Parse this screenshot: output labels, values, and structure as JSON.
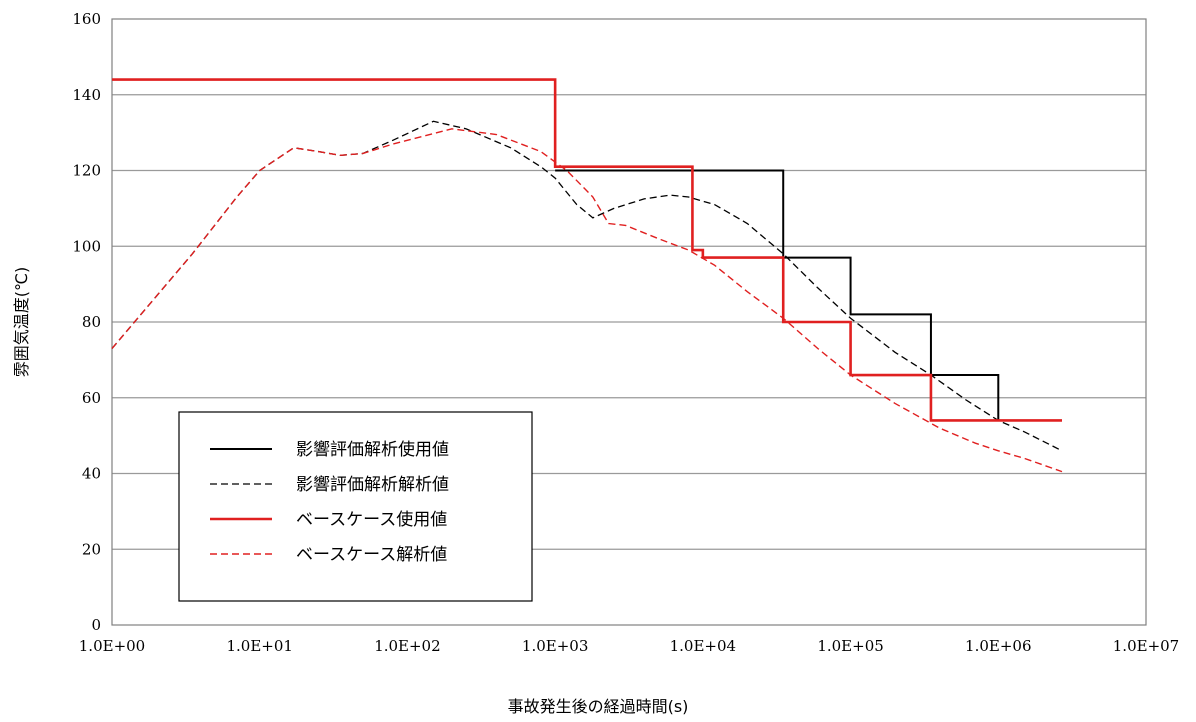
{
  "chart_data": {
    "type": "line",
    "xscale": "log",
    "xlim": [
      1,
      10000000
    ],
    "ylim": [
      0,
      160
    ],
    "grid": "horizontal",
    "legend_position": "bottom-left",
    "xlabel": "事故発生後の経過時間(s)",
    "ylabel": "雰囲気温度(℃)",
    "x_tick_values": [
      1,
      10,
      100,
      1000,
      10000,
      100000,
      1000000,
      10000000
    ],
    "x_tick_labels": [
      "1.0E+00",
      "1.0E+01",
      "1.0E+02",
      "1.0E+03",
      "1.0E+04",
      "1.0E+05",
      "1.0E+06",
      "1.0E+07"
    ],
    "y_tick_values": [
      0,
      20,
      40,
      60,
      80,
      100,
      120,
      140,
      160
    ],
    "y_tick_labels": [
      "0",
      "20",
      "40",
      "60",
      "80",
      "100",
      "120",
      "140",
      "160"
    ],
    "series": [
      {
        "name": "影響評価解析使用値",
        "color": "#000000",
        "style": "solid",
        "points": [
          [
            1000,
            120
          ],
          [
            35000,
            120
          ],
          [
            35000,
            97
          ],
          [
            100000,
            97
          ],
          [
            100000,
            82
          ],
          [
            350000,
            82
          ],
          [
            350000,
            66
          ],
          [
            1000000,
            66
          ],
          [
            1000000,
            54
          ]
        ]
      },
      {
        "name": "影響評価解析解析値",
        "color": "#000000",
        "style": "dashed",
        "points": [
          [
            1,
            73
          ],
          [
            3.5,
            98
          ],
          [
            7,
            113
          ],
          [
            10,
            120
          ],
          [
            17,
            126
          ],
          [
            25,
            125
          ],
          [
            35,
            124
          ],
          [
            50,
            124.5
          ],
          [
            80,
            128
          ],
          [
            150,
            133
          ],
          [
            250,
            131
          ],
          [
            500,
            126
          ],
          [
            800,
            121
          ],
          [
            1000,
            118
          ],
          [
            1400,
            111
          ],
          [
            1800,
            107.5
          ],
          [
            2500,
            110
          ],
          [
            4000,
            112.5
          ],
          [
            6000,
            113.5
          ],
          [
            8000,
            113
          ],
          [
            12000,
            111
          ],
          [
            20000,
            106
          ],
          [
            35000,
            98
          ],
          [
            60000,
            89
          ],
          [
            100000,
            81
          ],
          [
            200000,
            72
          ],
          [
            350000,
            66
          ],
          [
            600000,
            59.5
          ],
          [
            1000000,
            54
          ],
          [
            1500000,
            51
          ],
          [
            2700000,
            46
          ]
        ]
      },
      {
        "name": "ベースケース使用値",
        "color": "#e02020",
        "style": "solid",
        "points": [
          [
            1,
            144
          ],
          [
            1000,
            144
          ],
          [
            1000,
            121
          ],
          [
            8500,
            121
          ],
          [
            8500,
            99
          ],
          [
            10000,
            99
          ],
          [
            10000,
            97
          ],
          [
            35000,
            97
          ],
          [
            35000,
            80
          ],
          [
            100000,
            80
          ],
          [
            100000,
            66
          ],
          [
            350000,
            66
          ],
          [
            350000,
            54
          ],
          [
            2700000,
            54
          ]
        ]
      },
      {
        "name": "ベースケース解析値",
        "color": "#e02020",
        "style": "dashed",
        "points": [
          [
            1,
            73
          ],
          [
            3.5,
            98
          ],
          [
            7,
            113
          ],
          [
            10,
            120
          ],
          [
            17,
            126
          ],
          [
            25,
            125
          ],
          [
            35,
            124
          ],
          [
            50,
            124.5
          ],
          [
            80,
            127
          ],
          [
            200,
            131
          ],
          [
            400,
            129.5
          ],
          [
            800,
            125
          ],
          [
            1200,
            120
          ],
          [
            1800,
            113
          ],
          [
            2300,
            106
          ],
          [
            3000,
            105.5
          ],
          [
            5000,
            102
          ],
          [
            8000,
            99
          ],
          [
            12000,
            95
          ],
          [
            20000,
            88
          ],
          [
            35000,
            81
          ],
          [
            60000,
            73
          ],
          [
            100000,
            66
          ],
          [
            200000,
            58.5
          ],
          [
            400000,
            52
          ],
          [
            700000,
            48
          ],
          [
            1000000,
            46
          ],
          [
            1500000,
            44
          ],
          [
            2700000,
            40.5
          ]
        ]
      }
    ]
  }
}
